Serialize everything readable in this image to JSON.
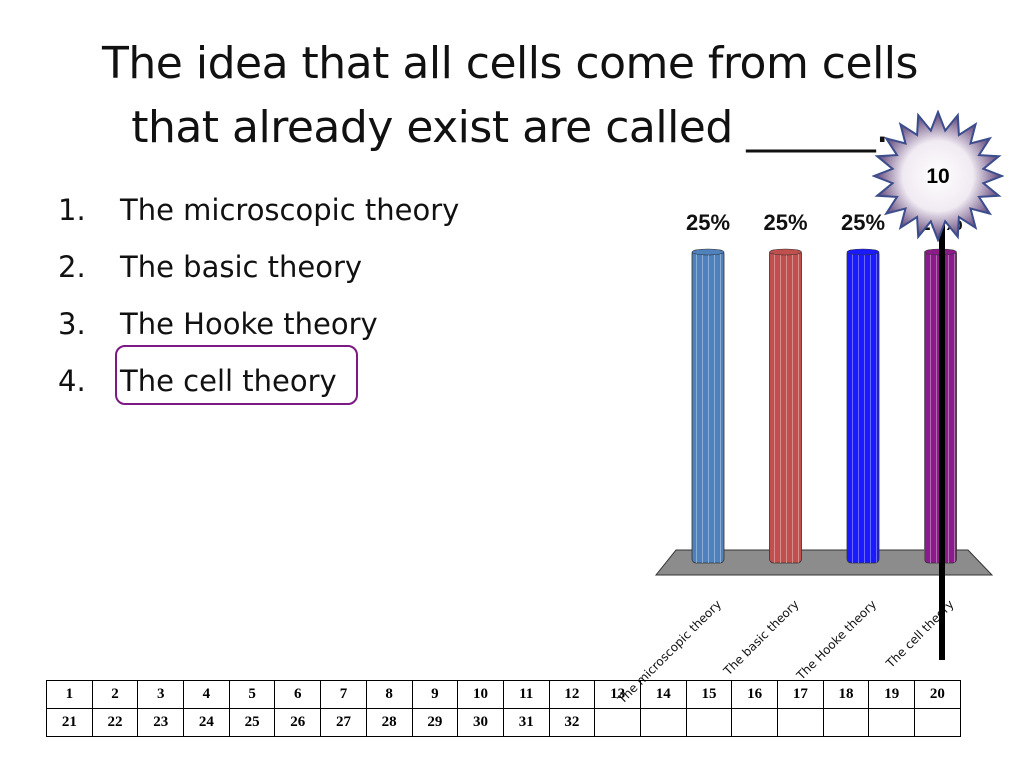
{
  "question": {
    "title": "The idea that all cells come from cells that already exist are called ______."
  },
  "answers": [
    {
      "number": "1.",
      "label": "The microscopic theory"
    },
    {
      "number": "2.",
      "label": "The basic theory"
    },
    {
      "number": "3.",
      "label": "The Hooke theory"
    },
    {
      "number": "4.",
      "label": "The cell theory"
    }
  ],
  "countdown": {
    "value": "10"
  },
  "chart_data": {
    "type": "bar",
    "categories": [
      "The microscopic theory",
      "The basic theory",
      "The Hooke theory",
      "The cell theory"
    ],
    "values": [
      25,
      25,
      25,
      25
    ],
    "value_labels": [
      "25%",
      "25%",
      "25%",
      "25%"
    ],
    "colors": [
      "#4f81bd",
      "#c0504d",
      "#1a1aff",
      "#8b1a8b"
    ],
    "ylim": [
      0,
      25
    ],
    "grid": false,
    "legend": "none"
  },
  "participants": {
    "row1": [
      "1",
      "2",
      "3",
      "4",
      "5",
      "6",
      "7",
      "8",
      "9",
      "10",
      "11",
      "12",
      "13",
      "14",
      "15",
      "16",
      "17",
      "18",
      "19",
      "20"
    ],
    "row2": [
      "21",
      "22",
      "23",
      "24",
      "25",
      "26",
      "27",
      "28",
      "29",
      "30",
      "31",
      "32",
      "",
      "",
      "",
      "",
      "",
      "",
      "",
      ""
    ]
  }
}
